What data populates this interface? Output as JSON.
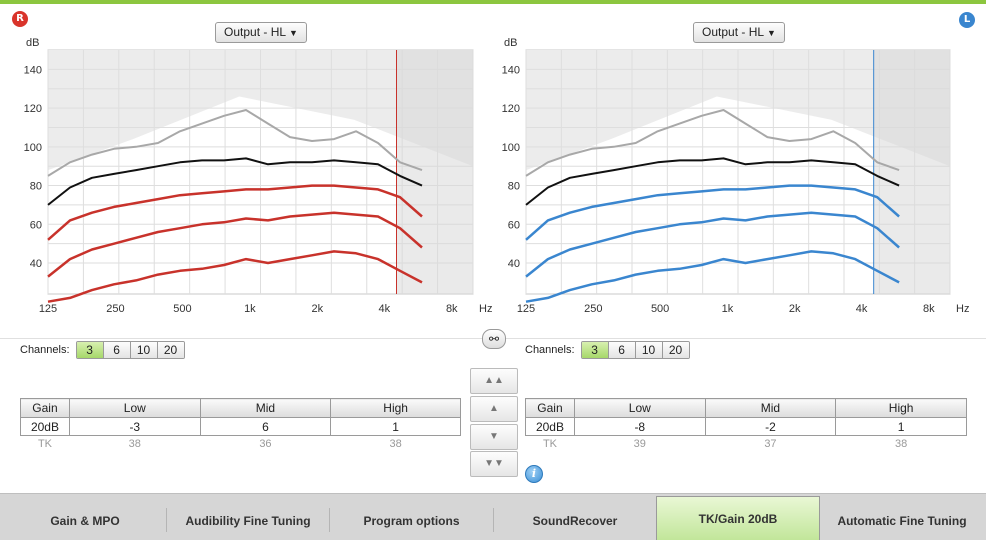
{
  "colors": {
    "accent_green": "#8cc63f",
    "right_ear": "#d9342b",
    "left_ear": "#3a86cf"
  },
  "right_panel": {
    "ear_badge": "R",
    "dropdown_label": "Output - HL",
    "y_unit": "dB",
    "y_ticks": [
      "140",
      "120",
      "100",
      "80",
      "60",
      "40"
    ],
    "x_ticks": [
      "125",
      "250",
      "500",
      "1k",
      "2k",
      "4k",
      "8k"
    ],
    "x_unit": "Hz",
    "channels_label": "Channels:",
    "channel_options": [
      "3",
      "6",
      "10",
      "20"
    ],
    "channel_selected": "3",
    "table": {
      "headers": [
        "Gain",
        "Low",
        "Mid",
        "High"
      ],
      "gain_row": [
        "20dB",
        "-3",
        "6",
        "1"
      ],
      "tk_row": [
        "TK",
        "38",
        "36",
        "38"
      ]
    }
  },
  "left_panel": {
    "ear_badge": "L",
    "dropdown_label": "Output - HL",
    "y_unit": "dB",
    "y_ticks": [
      "140",
      "120",
      "100",
      "80",
      "60",
      "40"
    ],
    "x_ticks": [
      "125",
      "250",
      "500",
      "1k",
      "2k",
      "4k",
      "8k"
    ],
    "x_unit": "Hz",
    "channels_label": "Channels:",
    "channel_options": [
      "3",
      "6",
      "10",
      "20"
    ],
    "channel_selected": "3",
    "table": {
      "headers": [
        "Gain",
        "Low",
        "Mid",
        "High"
      ],
      "gain_row": [
        "20dB",
        "-8",
        "-2",
        "1"
      ],
      "tk_row": [
        "TK",
        "39",
        "37",
        "38"
      ]
    }
  },
  "link_icon": "link-icon",
  "step_buttons": [
    {
      "icon": "double-up-arrow-icon",
      "glyph": "▲▲"
    },
    {
      "icon": "up-arrow-icon",
      "glyph": "▲"
    },
    {
      "icon": "down-arrow-icon",
      "glyph": "▼"
    },
    {
      "icon": "double-down-arrow-icon",
      "glyph": "▼▼"
    }
  ],
  "info_icon": "i",
  "tabs": [
    {
      "label": "Gain & MPO",
      "active": false
    },
    {
      "label": "Audibility Fine Tuning",
      "active": false
    },
    {
      "label": "Program options",
      "active": false
    },
    {
      "label": "SoundRecover",
      "active": false
    },
    {
      "label": "TK/Gain 20dB",
      "active": true
    },
    {
      "label": "Automatic Fine Tuning",
      "active": false
    }
  ]
}
